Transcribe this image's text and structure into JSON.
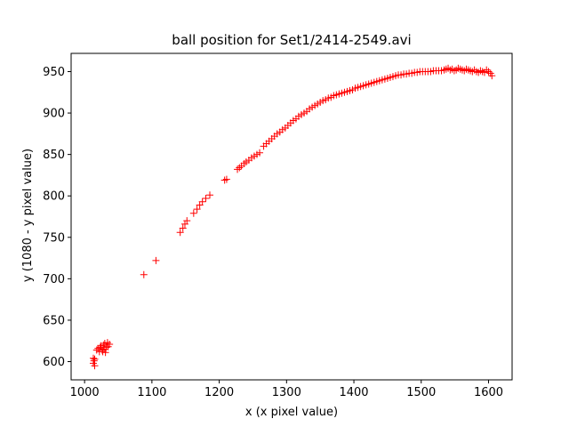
{
  "chart_data": {
    "type": "scatter",
    "title": "ball position for Set1/2414-2549.avi",
    "xlabel": "x (x pixel value)",
    "ylabel": "y (1080 - y pixel value)",
    "xlim": [
      980,
      1635
    ],
    "ylim": [
      578,
      972
    ],
    "xticks": [
      1000,
      1100,
      1200,
      1300,
      1400,
      1500,
      1600
    ],
    "yticks": [
      600,
      650,
      700,
      750,
      800,
      850,
      900,
      950
    ],
    "grid": false,
    "marker": "+",
    "color": "#ff0000",
    "points": [
      [
        1013,
        598
      ],
      [
        1013,
        604
      ],
      [
        1014,
        601
      ],
      [
        1015,
        595
      ],
      [
        1015,
        603
      ],
      [
        1018,
        614
      ],
      [
        1020,
        616
      ],
      [
        1022,
        612
      ],
      [
        1023,
        617
      ],
      [
        1024,
        619
      ],
      [
        1026,
        614
      ],
      [
        1027,
        612
      ],
      [
        1028,
        620
      ],
      [
        1029,
        615
      ],
      [
        1030,
        622
      ],
      [
        1031,
        611
      ],
      [
        1032,
        617
      ],
      [
        1034,
        623
      ],
      [
        1035,
        618
      ],
      [
        1037,
        621
      ],
      [
        1088,
        705
      ],
      [
        1106,
        722
      ],
      [
        1142,
        756
      ],
      [
        1146,
        761
      ],
      [
        1149,
        766
      ],
      [
        1152,
        770
      ],
      [
        1162,
        779
      ],
      [
        1167,
        784
      ],
      [
        1171,
        789
      ],
      [
        1175,
        793
      ],
      [
        1180,
        797
      ],
      [
        1186,
        801
      ],
      [
        1208,
        819
      ],
      [
        1211,
        820
      ],
      [
        1227,
        832
      ],
      [
        1230,
        834
      ],
      [
        1233,
        836
      ],
      [
        1237,
        839
      ],
      [
        1240,
        841
      ],
      [
        1244,
        843
      ],
      [
        1248,
        846
      ],
      [
        1252,
        848
      ],
      [
        1256,
        850
      ],
      [
        1260,
        852
      ],
      [
        1266,
        860
      ],
      [
        1270,
        863
      ],
      [
        1274,
        866
      ],
      [
        1278,
        869
      ],
      [
        1282,
        872
      ],
      [
        1286,
        875
      ],
      [
        1290,
        877
      ],
      [
        1294,
        880
      ],
      [
        1298,
        882
      ],
      [
        1302,
        885
      ],
      [
        1306,
        888
      ],
      [
        1310,
        891
      ],
      [
        1314,
        893
      ],
      [
        1318,
        896
      ],
      [
        1322,
        898
      ],
      [
        1326,
        900
      ],
      [
        1330,
        902
      ],
      [
        1334,
        905
      ],
      [
        1338,
        907
      ],
      [
        1342,
        909
      ],
      [
        1346,
        911
      ],
      [
        1350,
        913
      ],
      [
        1354,
        915
      ],
      [
        1358,
        916
      ],
      [
        1362,
        918
      ],
      [
        1366,
        919
      ],
      [
        1370,
        921
      ],
      [
        1374,
        922
      ],
      [
        1378,
        923
      ],
      [
        1382,
        924
      ],
      [
        1386,
        925
      ],
      [
        1390,
        926
      ],
      [
        1394,
        927
      ],
      [
        1398,
        928
      ],
      [
        1402,
        930
      ],
      [
        1406,
        931
      ],
      [
        1410,
        932
      ],
      [
        1414,
        933
      ],
      [
        1418,
        934
      ],
      [
        1422,
        935
      ],
      [
        1426,
        936
      ],
      [
        1430,
        937
      ],
      [
        1434,
        938
      ],
      [
        1438,
        939
      ],
      [
        1442,
        940
      ],
      [
        1446,
        941
      ],
      [
        1450,
        942
      ],
      [
        1454,
        943
      ],
      [
        1458,
        944
      ],
      [
        1462,
        945
      ],
      [
        1466,
        946
      ],
      [
        1470,
        946
      ],
      [
        1474,
        947
      ],
      [
        1478,
        947
      ],
      [
        1482,
        948
      ],
      [
        1486,
        948
      ],
      [
        1490,
        949
      ],
      [
        1494,
        949
      ],
      [
        1498,
        950
      ],
      [
        1502,
        950
      ],
      [
        1506,
        950
      ],
      [
        1510,
        950
      ],
      [
        1514,
        950
      ],
      [
        1518,
        951
      ],
      [
        1522,
        951
      ],
      [
        1526,
        951
      ],
      [
        1530,
        951
      ],
      [
        1534,
        952
      ],
      [
        1537,
        953
      ],
      [
        1540,
        954
      ],
      [
        1543,
        952
      ],
      [
        1546,
        953
      ],
      [
        1549,
        951
      ],
      [
        1552,
        952
      ],
      [
        1555,
        954
      ],
      [
        1558,
        953
      ],
      [
        1561,
        952
      ],
      [
        1564,
        951
      ],
      [
        1567,
        953
      ],
      [
        1570,
        952
      ],
      [
        1573,
        951
      ],
      [
        1576,
        950
      ],
      [
        1579,
        952
      ],
      [
        1582,
        950
      ],
      [
        1585,
        949
      ],
      [
        1588,
        951
      ],
      [
        1591,
        950
      ],
      [
        1594,
        949
      ],
      [
        1597,
        952
      ],
      [
        1600,
        950
      ],
      [
        1603,
        948
      ],
      [
        1605,
        945
      ]
    ]
  }
}
